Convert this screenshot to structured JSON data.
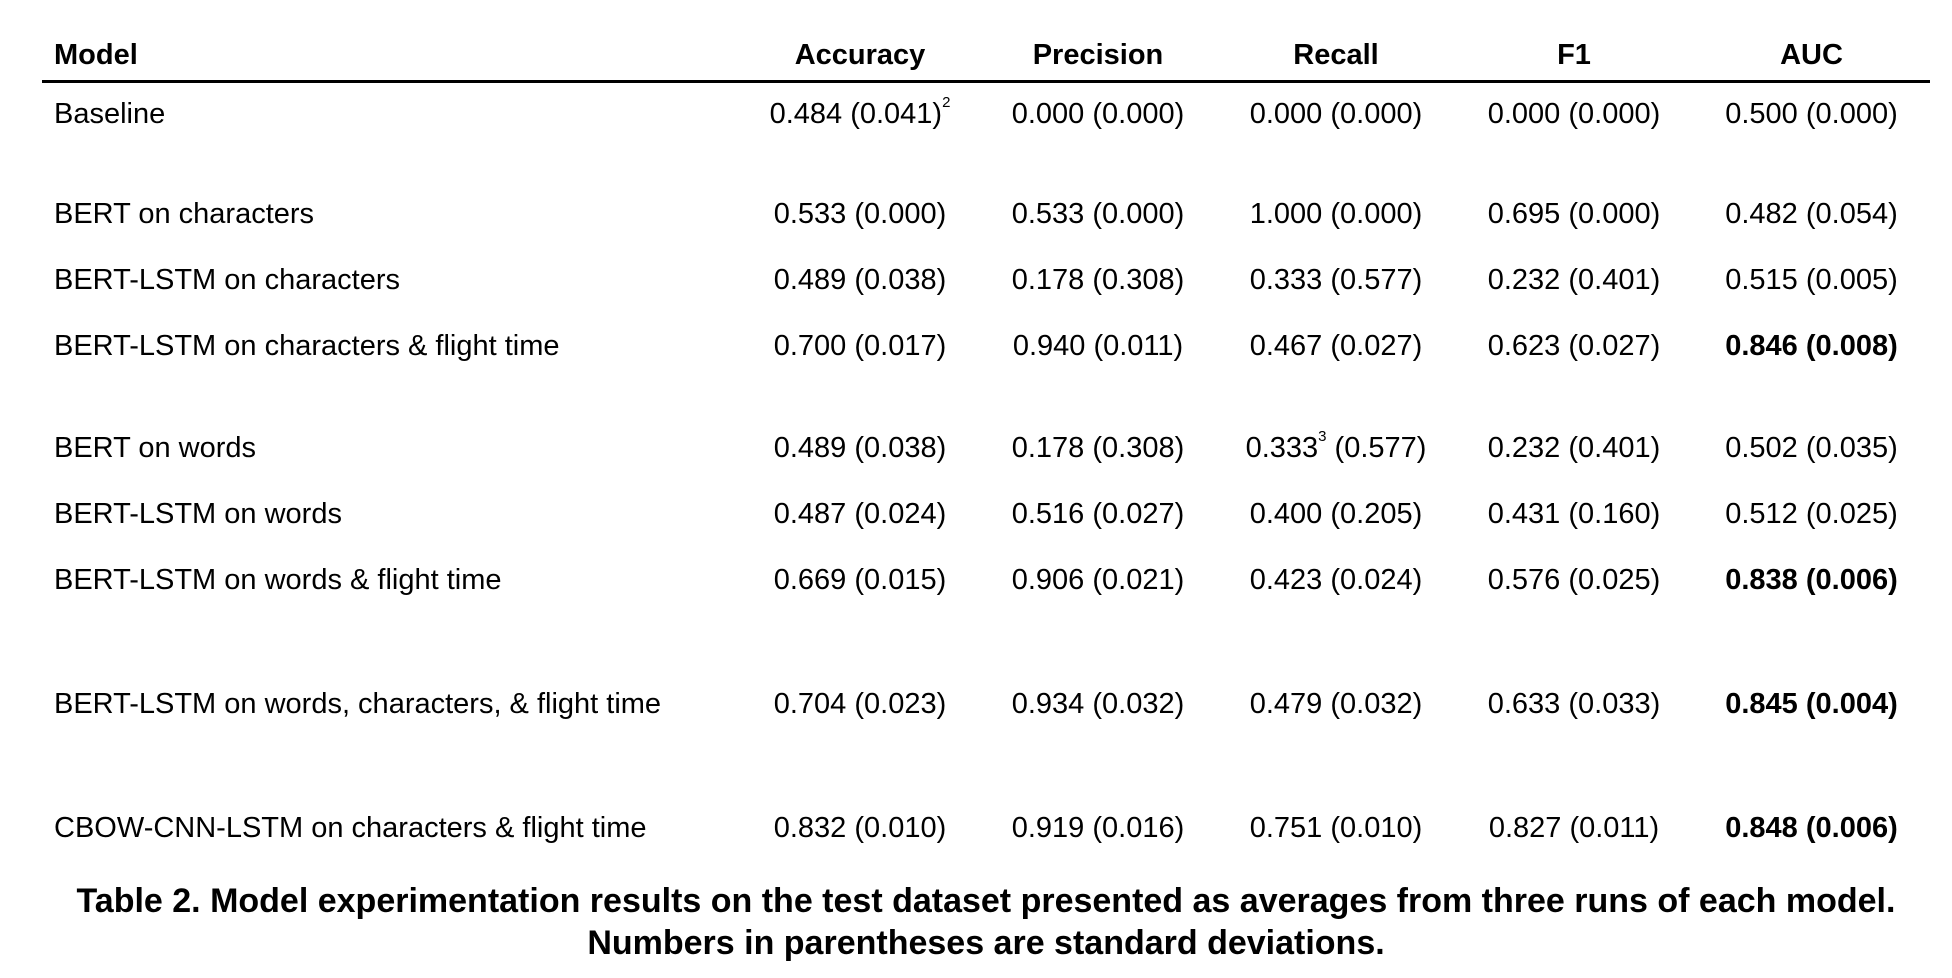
{
  "table": {
    "headers": [
      "Model",
      "Accuracy",
      "Precision",
      "Recall",
      "F1",
      "AUC"
    ],
    "rows": [
      {
        "model": "Baseline",
        "accuracy": "0.484 (0.041)",
        "accuracy_sup": "2",
        "precision": "0.000 (0.000)",
        "recall": "0.000 (0.000)",
        "recall_sup": "",
        "f1": "0.000 (0.000)",
        "auc": "0.500 (0.000)",
        "auc_bold": false
      },
      {
        "model": "BERT on characters",
        "accuracy": "0.533 (0.000)",
        "accuracy_sup": "",
        "precision": "0.533 (0.000)",
        "recall": "1.000 (0.000)",
        "recall_sup": "",
        "f1": "0.695 (0.000)",
        "auc": "0.482 (0.054)",
        "auc_bold": false
      },
      {
        "model": "BERT-LSTM on characters",
        "accuracy": "0.489 (0.038)",
        "accuracy_sup": "",
        "precision": "0.178 (0.308)",
        "recall": "0.333 (0.577)",
        "recall_sup": "",
        "f1": "0.232 (0.401)",
        "auc": "0.515 (0.005)",
        "auc_bold": false
      },
      {
        "model": "BERT-LSTM on characters & flight time",
        "accuracy": "0.700 (0.017)",
        "accuracy_sup": "",
        "precision": "0.940 (0.011)",
        "recall": "0.467 (0.027)",
        "recall_sup": "",
        "f1": "0.623 (0.027)",
        "auc": "0.846 (0.008)",
        "auc_bold": true
      },
      {
        "model": "BERT on words",
        "accuracy": "0.489 (0.038)",
        "accuracy_sup": "",
        "precision": "0.178 (0.308)",
        "recall_pre": "0.333",
        "recall_sup": "3",
        "recall_post": " (0.577)",
        "f1": "0.232 (0.401)",
        "auc": "0.502 (0.035)",
        "auc_bold": false
      },
      {
        "model": "BERT-LSTM on words",
        "accuracy": "0.487 (0.024)",
        "accuracy_sup": "",
        "precision": "0.516 (0.027)",
        "recall": "0.400 (0.205)",
        "recall_sup": "",
        "f1": "0.431 (0.160)",
        "auc": "0.512 (0.025)",
        "auc_bold": false
      },
      {
        "model": "BERT-LSTM on words & flight time",
        "accuracy": "0.669 (0.015)",
        "accuracy_sup": "",
        "precision": "0.906 (0.021)",
        "recall": "0.423 (0.024)",
        "recall_sup": "",
        "f1": "0.576 (0.025)",
        "auc": "0.838 (0.006)",
        "auc_bold": true
      },
      {
        "model": "BERT-LSTM on words, characters, & flight time",
        "accuracy": "0.704 (0.023)",
        "accuracy_sup": "",
        "precision": "0.934 (0.032)",
        "recall": "0.479 (0.032)",
        "recall_sup": "",
        "f1": "0.633 (0.033)",
        "auc": "0.845 (0.004)",
        "auc_bold": true
      },
      {
        "model": "CBOW-CNN-LSTM on characters & flight time",
        "accuracy": "0.832 (0.010)",
        "accuracy_sup": "",
        "precision": "0.919 (0.016)",
        "recall": "0.751 (0.010)",
        "recall_sup": "",
        "f1": "0.827 (0.011)",
        "auc": "0.848 (0.006)",
        "auc_bold": true
      }
    ]
  },
  "caption": "Table 2. Model experimentation results on the test dataset presented as averages from three runs of each model. Numbers in parentheses are standard deviations."
}
